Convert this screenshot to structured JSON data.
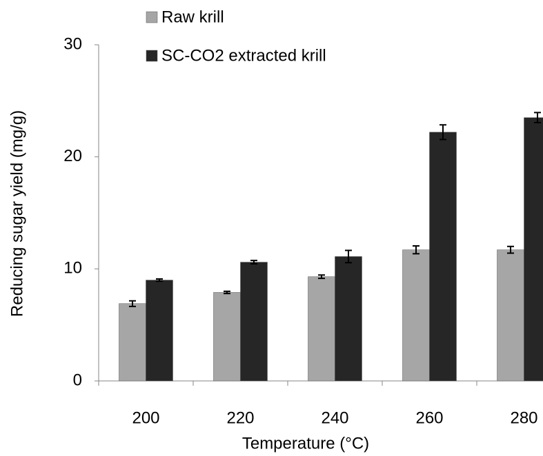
{
  "chart_data": {
    "type": "bar",
    "x_label": "Temperature (°C)",
    "y_label": "Reducing sugar yield (mg/g)",
    "categories": [
      "200",
      "220",
      "240",
      "260",
      "280"
    ],
    "series": [
      {
        "name": "Raw krill",
        "color": "#a6a6a6",
        "values": [
          6.9,
          7.9,
          9.3,
          11.7,
          11.7
        ],
        "errors": [
          0.25,
          0.1,
          0.15,
          0.35,
          0.3
        ]
      },
      {
        "name": "SC-CO2 extracted krill",
        "color": "#262626",
        "values": [
          9.0,
          10.6,
          11.1,
          22.2,
          23.5
        ],
        "errors": [
          0.1,
          0.15,
          0.55,
          0.65,
          0.45
        ]
      }
    ],
    "ylim": [
      0,
      30
    ],
    "yticks": [
      0,
      10,
      20,
      30
    ],
    "legend": "top"
  }
}
